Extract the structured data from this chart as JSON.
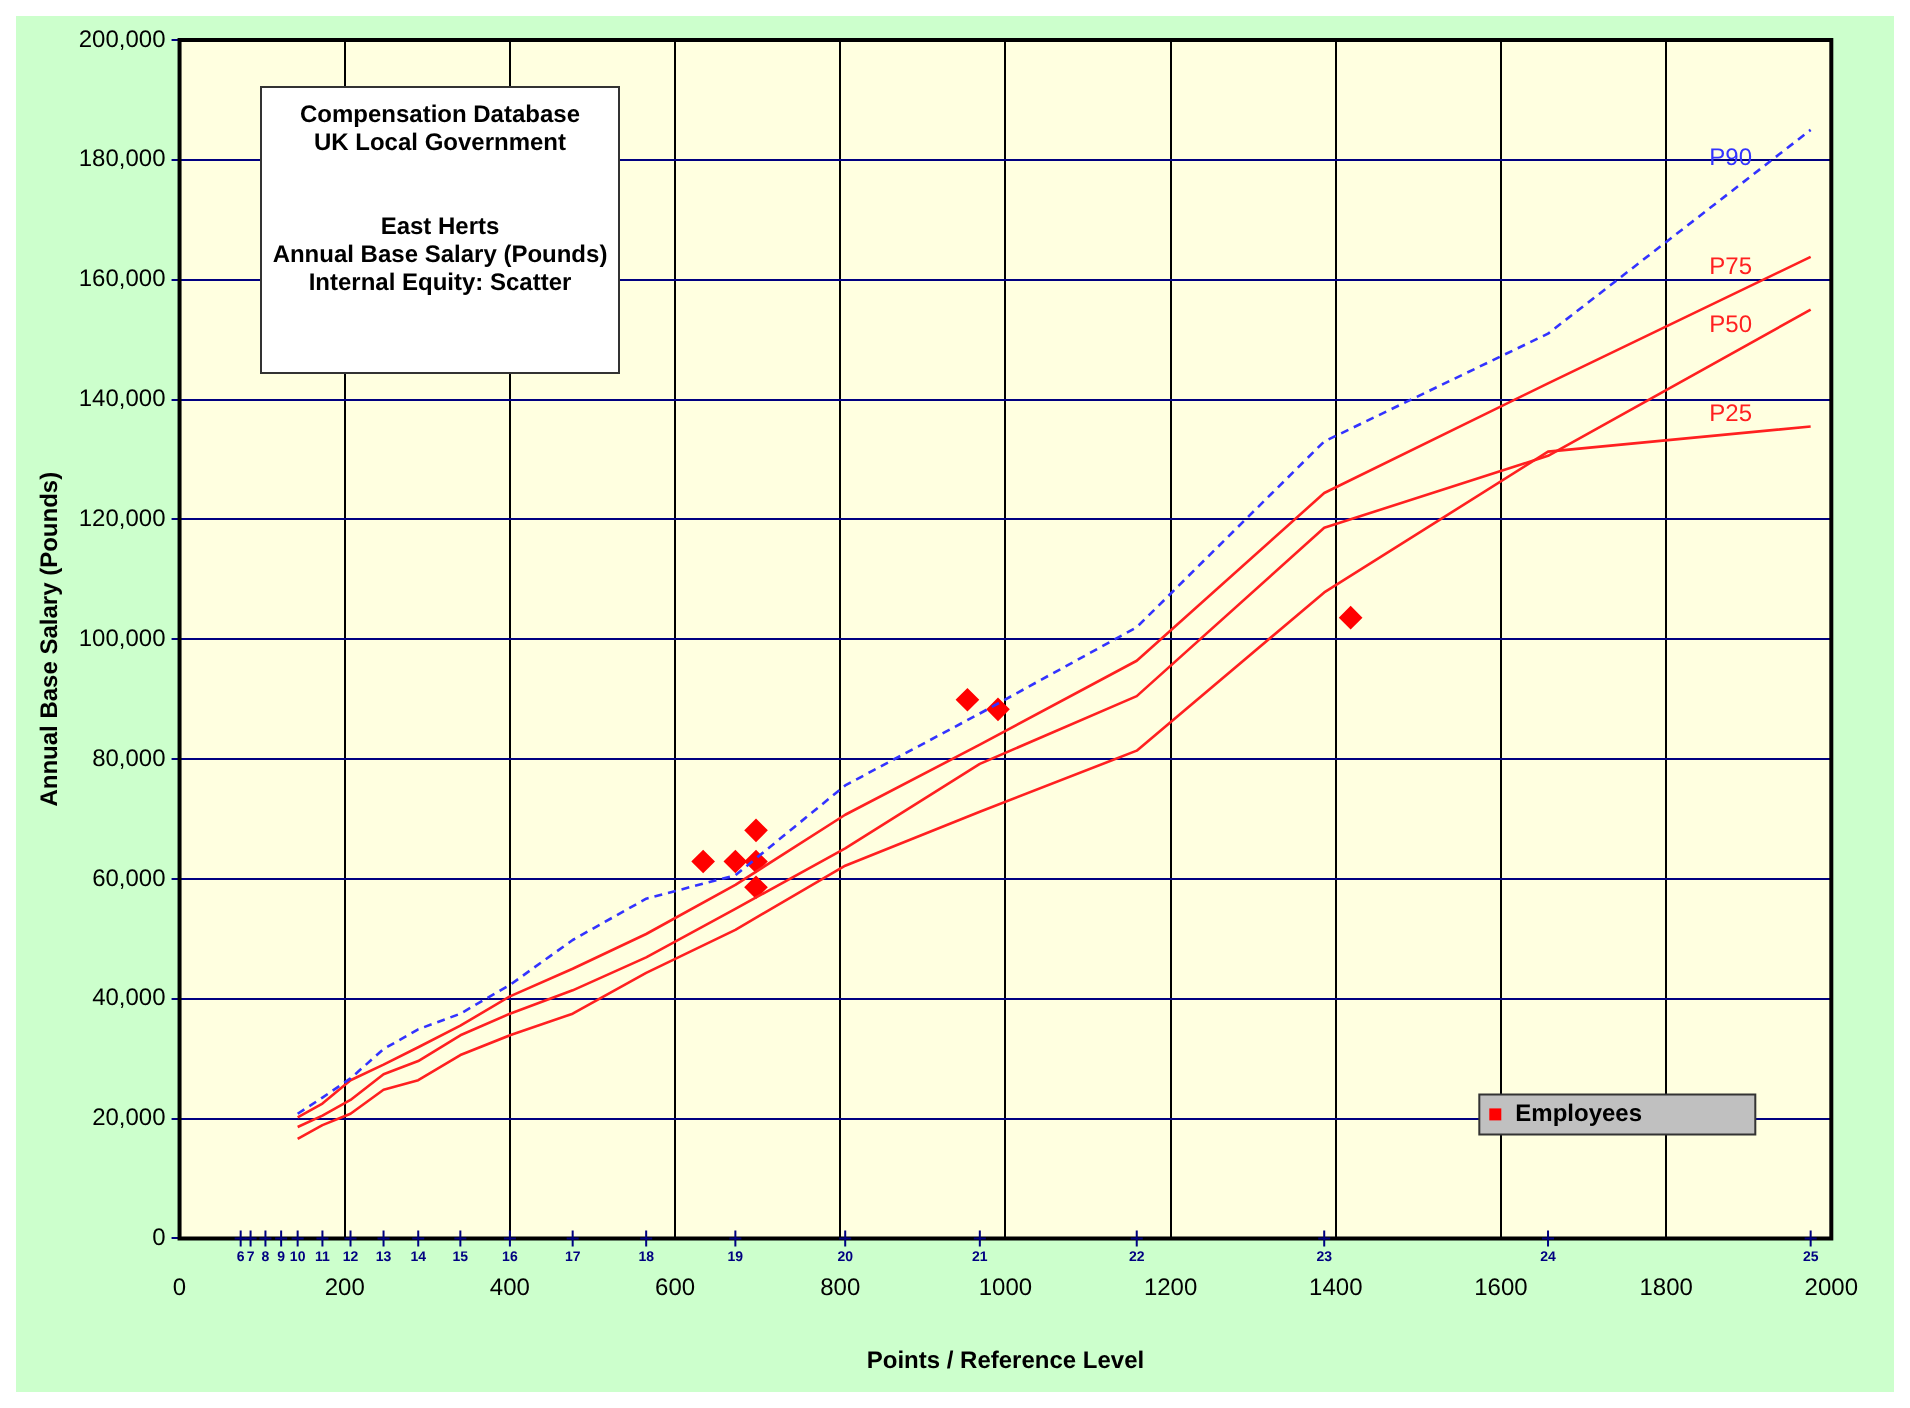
{
  "chart_data": {
    "type": "line",
    "title": "Compensation Database",
    "subtitle": "UK Local Government",
    "annotations": [
      "East Herts",
      "Annual Base Salary (Pounds)",
      "Internal Equity: Scatter",
      "6",
      "7",
      "8",
      "9",
      "10",
      "11",
      "12",
      "13",
      "14",
      "15",
      "16",
      "17",
      "18",
      "19",
      "20",
      "21",
      "22",
      "23",
      "24",
      "25"
    ],
    "xlabel": "Points / Reference Level",
    "ylabel": "Annual Base Salary (Pounds)",
    "xlim": [
      0,
      2000
    ],
    "xticks": [
      0,
      200,
      400,
      600,
      800,
      1000,
      1200,
      1400,
      1600,
      1800,
      2000
    ],
    "ylim": [
      0,
      200000
    ],
    "yticks": [
      {
        "value": 0,
        "label": "0"
      },
      {
        "value": 20000,
        "label": "20,000"
      },
      {
        "value": 40000,
        "label": "40,000"
      },
      {
        "value": 60000,
        "label": "60,000"
      },
      {
        "value": 80000,
        "label": "80,000"
      },
      {
        "value": 100000,
        "label": "100,000"
      },
      {
        "value": 120000,
        "label": "120,000"
      },
      {
        "value": 140000,
        "label": "140,000"
      },
      {
        "value": 160000,
        "label": "160,000"
      },
      {
        "value": 180000,
        "label": "180,000"
      },
      {
        "value": 200000,
        "label": "200,000"
      }
    ],
    "grid": true,
    "legend": "bottom right",
    "series": [
      {
        "name": "P90",
        "color": "#3333ff",
        "line_style": "dashed",
        "marker": "none",
        "x": [
          143,
          173,
          207,
          247,
          289,
          340,
          400,
          476,
          565,
          673,
          806,
          969,
          1159,
          1386,
          1657,
          1975
        ],
        "values": [
          20800,
          23500,
          26700,
          31600,
          34900,
          37500,
          42300,
          49800,
          56700,
          60600,
          75600,
          87600,
          102000,
          133000,
          151000,
          185000
        ]
      },
      {
        "name": "P75",
        "color": "#ff2020",
        "line_style": "solid",
        "marker": "none",
        "x": [
          143,
          173,
          207,
          247,
          289,
          340,
          400,
          476,
          565,
          673,
          806,
          969,
          1159,
          1386,
          1657,
          1975
        ],
        "values": [
          20200,
          22500,
          26400,
          29000,
          31900,
          35500,
          40400,
          45000,
          50800,
          59000,
          70700,
          82400,
          96400,
          124400,
          142700,
          163800
        ]
      },
      {
        "name": "P50",
        "color": "#ff2020",
        "line_style": "solid",
        "marker": "none",
        "x": [
          143,
          173,
          207,
          247,
          289,
          340,
          400,
          476,
          565,
          673,
          806,
          969,
          1159,
          1386,
          1657,
          1975
        ],
        "values": [
          18600,
          20500,
          23100,
          27400,
          29600,
          33900,
          37500,
          41400,
          46900,
          55000,
          65100,
          79200,
          90500,
          118600,
          130600,
          155000
        ]
      },
      {
        "name": "P25",
        "color": "#ff2020",
        "line_style": "solid",
        "marker": "none",
        "x": [
          143,
          173,
          207,
          247,
          289,
          340,
          400,
          476,
          565,
          673,
          806,
          969,
          1159,
          1386,
          1657,
          1975
        ],
        "values": [
          16600,
          18900,
          20800,
          24800,
          26400,
          30600,
          33900,
          37500,
          44300,
          51500,
          62200,
          71200,
          81400,
          107800,
          131300,
          135500
        ]
      },
      {
        "name": "Employees",
        "type": "scatter",
        "color": "#ff0000",
        "marker": "diamond",
        "x": [
          634,
          673,
          698,
          698,
          698,
          954,
          991,
          1418
        ],
        "values": [
          62900,
          62900,
          68100,
          62900,
          58600,
          89900,
          88300,
          103600
        ]
      }
    ]
  }
}
